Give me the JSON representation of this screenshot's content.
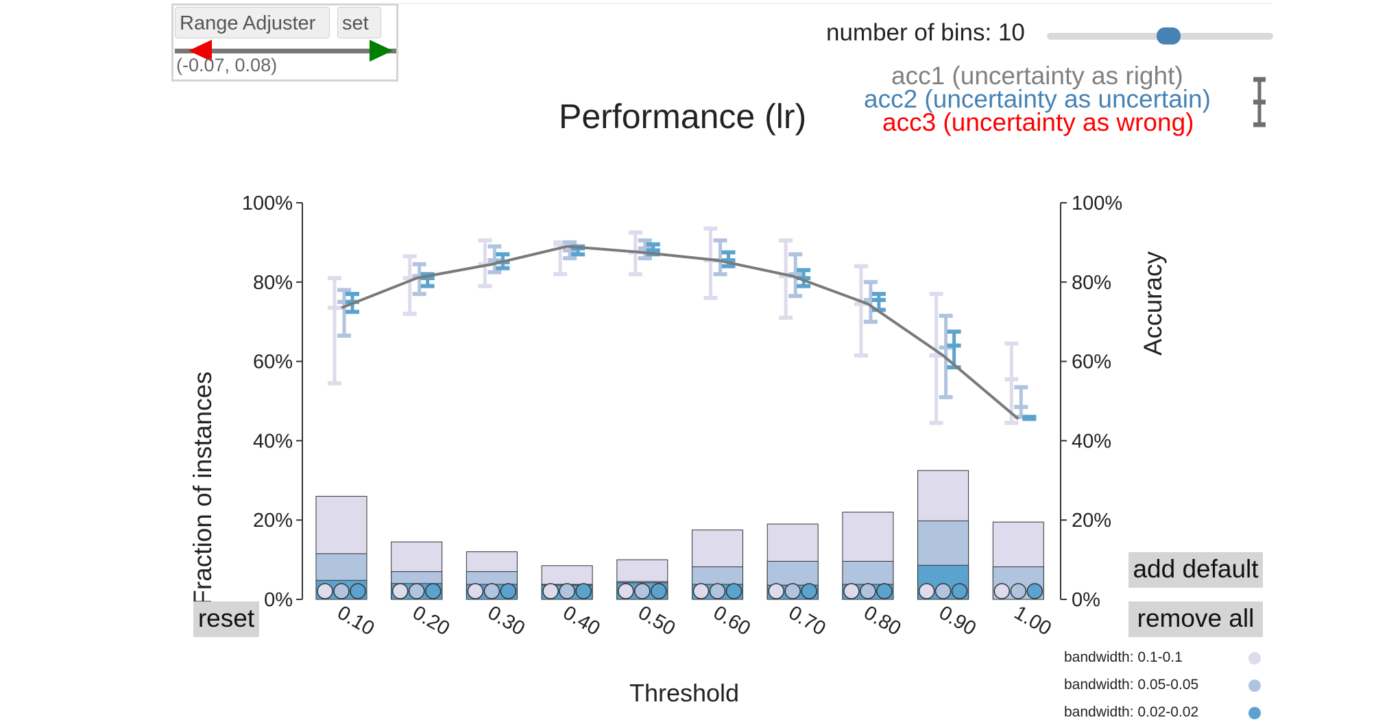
{
  "range_adjuster": {
    "title_label": "Range Adjuster",
    "set_label": "set",
    "range_text": "(-0.07, 0.08)"
  },
  "bins": {
    "label": "number of bins: 10",
    "value": 10
  },
  "accuracy_legend": [
    {
      "label": "acc1 (uncertainty as right)",
      "color": "#808080"
    },
    {
      "label": "acc2 (uncertainty as uncertain)",
      "color": "#4682b4"
    },
    {
      "label": "acc3 (uncertainty as wrong)",
      "color": "#ff0000"
    }
  ],
  "buttons": {
    "reset": "reset",
    "add_default": "add default",
    "remove_all": "remove all"
  },
  "bandwidth_legend": [
    {
      "label": "bandwidth: 0.1-0.1",
      "color": "#dddbec"
    },
    {
      "label": "bandwidth: 0.05-0.05",
      "color": "#b0c4e0"
    },
    {
      "label": "bandwidth: 0.02-0.02",
      "color": "#5ba3cf"
    }
  ],
  "chart_data": {
    "type": "bar",
    "title": "Performance (lr)",
    "xlabel": "Threshold",
    "ylabel_left": "Fraction of instances",
    "ylabel_right": "Accuracy",
    "categories": [
      "0.10",
      "0.20",
      "0.30",
      "0.40",
      "0.50",
      "0.60",
      "0.70",
      "0.80",
      "0.90",
      "1.00"
    ],
    "ylim": [
      0,
      100
    ],
    "yticks_left": [
      "0%",
      "20%",
      "40%",
      "60%",
      "80%",
      "100%"
    ],
    "yticks_right": [
      "0%",
      "20%",
      "40%",
      "60%",
      "80%",
      "100%"
    ],
    "bar_series": [
      {
        "name": "bandwidth: 0.1-0.1",
        "color": "#dddbec",
        "values": [
          26,
          14.5,
          12,
          8.5,
          10,
          17.5,
          19,
          22,
          32.5,
          19.5
        ]
      },
      {
        "name": "bandwidth: 0.05-0.05",
        "color": "#b0c4e0",
        "values": [
          11.5,
          7,
          7,
          3.8,
          4.5,
          8.2,
          9.6,
          9.6,
          19.8,
          8.2
        ]
      },
      {
        "name": "bandwidth: 0.02-0.02",
        "color": "#5ba3cf",
        "values": [
          4.8,
          4,
          3.8,
          3.6,
          4.2,
          3.8,
          3.6,
          3.8,
          8.6,
          0
        ]
      }
    ],
    "line": {
      "name": "Accuracy",
      "color": "#7a7a7a",
      "values": [
        73.5,
        81,
        84.5,
        89,
        87.5,
        85.5,
        81.5,
        74.5,
        61.5,
        45.5
      ]
    },
    "error_bars": [
      {
        "name": "bandwidth: 0.1-0.1",
        "color": "#dddbec",
        "low": [
          54.5,
          72,
          79,
          82,
          82,
          76,
          71,
          61.5,
          44.5,
          44.5
        ],
        "mid": [
          73.5,
          81,
          84.5,
          89.5,
          87.5,
          85.5,
          81.5,
          74.5,
          61.5,
          55.5
        ],
        "high": [
          81,
          86.5,
          90.5,
          90,
          92.5,
          93.5,
          90.5,
          84,
          77,
          64.5
        ]
      },
      {
        "name": "bandwidth: 0.05-0.05",
        "color": "#b0c4e0",
        "low": [
          66.5,
          77,
          82.5,
          86,
          86,
          82,
          76.5,
          70,
          51,
          46
        ],
        "mid": [
          75,
          81.5,
          85.5,
          88,
          88.5,
          85.5,
          82,
          75.5,
          63.5,
          48.5
        ],
        "high": [
          78,
          84.5,
          89,
          90,
          90.5,
          90.5,
          87,
          80,
          71.5,
          53.5
        ]
      },
      {
        "name": "bandwidth: 0.02-0.02",
        "color": "#5ba3cf",
        "low": [
          72.5,
          79,
          83.5,
          87,
          87,
          84,
          79,
          73,
          58.5,
          45.5
        ],
        "mid": [
          75,
          81,
          85,
          88.5,
          88,
          85.5,
          81,
          75.5,
          64,
          46
        ],
        "high": [
          77,
          82,
          87,
          89,
          89.5,
          87.5,
          83,
          77,
          67.5,
          46
        ]
      }
    ],
    "grid": false,
    "legend_position": "bottom-right"
  }
}
